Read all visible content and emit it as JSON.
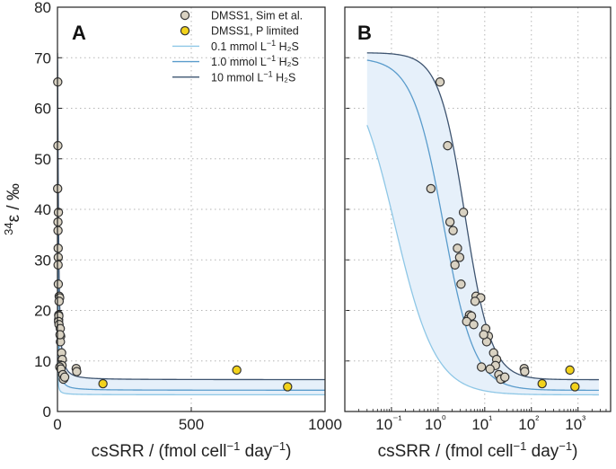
{
  "colors": {
    "sim_fill": "#d9d2c2",
    "plim_fill": "#f2d21b",
    "marker_edge": "#333333",
    "curve_01": "#8ec7e6",
    "curve_10": "#5a9ccc",
    "curve_100": "#3e5470",
    "band_fill": "#e6f0fa"
  },
  "chart_data": [
    {
      "panel": "A",
      "type": "scatter",
      "xscale": "linear",
      "xlim": [
        0,
        1000
      ],
      "ylim": [
        0,
        80
      ],
      "xticks": [
        0,
        500,
        1000
      ],
      "yticks": [
        0,
        10,
        20,
        30,
        40,
        50,
        60,
        70,
        80
      ],
      "xtick_labels": [
        "0",
        "500",
        "1000"
      ],
      "ytick_labels": [
        "0",
        "10",
        "20",
        "30",
        "40",
        "50",
        "60",
        "70",
        "80"
      ],
      "xlabel": "csSRR / (fmol cell⁻¹ day⁻¹)",
      "ylabel": "³⁴ε / ‰",
      "grid": true,
      "legend_position": "top-right"
    },
    {
      "panel": "B",
      "type": "scatter",
      "xscale": "log",
      "xlim": [
        0.01,
        5000
      ],
      "ylim": [
        0,
        80
      ],
      "xticks": [
        0.1,
        1,
        10,
        100,
        1000
      ],
      "xtick_labels": [
        "10⁻¹",
        "10⁰",
        "10¹",
        "10²",
        "10³"
      ],
      "xlabel": "csSRR / (fmol cell⁻¹ day⁻¹)",
      "grid": true
    }
  ],
  "series": {
    "sim": {
      "name": "DMSS1, Sim et al.",
      "x": [
        1.1,
        1.6,
        0.7,
        3.5,
        1.8,
        2.1,
        2.6,
        2.9,
        2.3,
        3.1,
        6.5,
        8.2,
        4.7,
        4.3,
        5.2,
        4.1,
        5.8,
        6.2,
        10.5,
        12,
        11,
        15.5,
        9.5,
        18,
        17,
        8.5,
        13,
        20,
        24,
        22,
        27,
        70,
        72
      ],
      "y": [
        65.2,
        52.6,
        44.1,
        39.4,
        37.5,
        35.8,
        32.3,
        30.5,
        29.0,
        25.2,
        22.8,
        22.5,
        19.1,
        18.2,
        18.9,
        17.8,
        17.2,
        21.8,
        16.4,
        14.9,
        13.8,
        11.6,
        15.2,
        10.3,
        9.1,
        8.8,
        8.4,
        7.3,
        6.5,
        6.4,
        6.8,
        8.5,
        7.9
      ]
    },
    "plim": {
      "name": "DMSS1, P limited",
      "x": [
        170,
        670,
        860
      ],
      "y": [
        5.5,
        8.2,
        4.9
      ]
    }
  },
  "curves": [
    {
      "name": "0.1 mmol L⁻¹ H₂S",
      "emax": 70,
      "emin": 3.3,
      "k": 0.12,
      "n": 1.0
    },
    {
      "name": "1.0 mmol L⁻¹ H₂S",
      "emax": 70,
      "emin": 4.2,
      "k": 1.3,
      "n": 1.3
    },
    {
      "name": "10 mmol L⁻¹ H₂S",
      "emax": 71,
      "emin": 6.3,
      "k": 3.8,
      "n": 1.55
    }
  ],
  "legend": {
    "items": [
      {
        "label_main": "DMSS1, Sim et al.",
        "sup": "",
        "tail": "",
        "marker": "sim"
      },
      {
        "label_main": "DMSS1, P limited",
        "sup": "",
        "tail": "",
        "marker": "plim"
      },
      {
        "label_main": "0.1 mmol L",
        "sup": "−1",
        "tail": " H₂S",
        "marker": "line01"
      },
      {
        "label_main": "1.0 mmol L",
        "sup": "−1",
        "tail": " H₂S",
        "marker": "line10"
      },
      {
        "label_main": "10 mmol L",
        "sup": "−1",
        "tail": " H₂S",
        "marker": "line100"
      }
    ]
  },
  "labels": {
    "panelA": "A",
    "panelB": "B",
    "xlabel_main": "csSRR / (fmol cell",
    "xlabel_sup1": "−1",
    "xlabel_mid": " day",
    "xlabel_sup2": "−1",
    "xlabel_end": ")",
    "ylabel_sup": "34",
    "ylabel_main": "ε / ‰"
  }
}
